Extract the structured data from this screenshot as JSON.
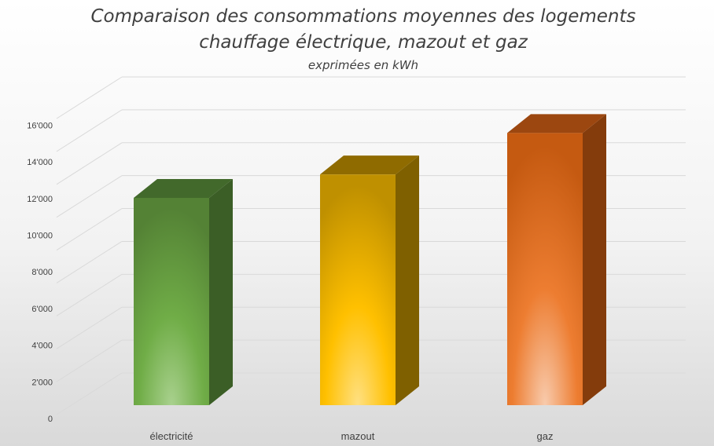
{
  "chart_data": {
    "type": "bar",
    "title_line1": "Comparaison des consommations moyennes des logements",
    "title_line2": "chauffage électrique, mazout et gaz",
    "subtitle": "exprimées en kWh",
    "categories": [
      "électricité",
      "mazout",
      "gaz"
    ],
    "values": [
      11500,
      12800,
      15100
    ],
    "ylim": [
      0,
      16000
    ],
    "yticks": [
      "0",
      "2'000",
      "4'000",
      "6'000",
      "8'000",
      "10'000",
      "12'000",
      "14'000",
      "16'000"
    ],
    "grid": true,
    "legend": "none",
    "colors": [
      {
        "light": "#a9d18e",
        "mid": "#70ad47",
        "dark": "#548235",
        "side": "#3b5e26",
        "top": "#42692b"
      },
      {
        "light": "#ffe082",
        "mid": "#ffc000",
        "dark": "#bf9000",
        "side": "#7f6000",
        "top": "#8f6b00"
      },
      {
        "light": "#f8cbad",
        "mid": "#ed7d31",
        "dark": "#c55a11",
        "side": "#843c0c",
        "top": "#9c4710"
      }
    ]
  }
}
